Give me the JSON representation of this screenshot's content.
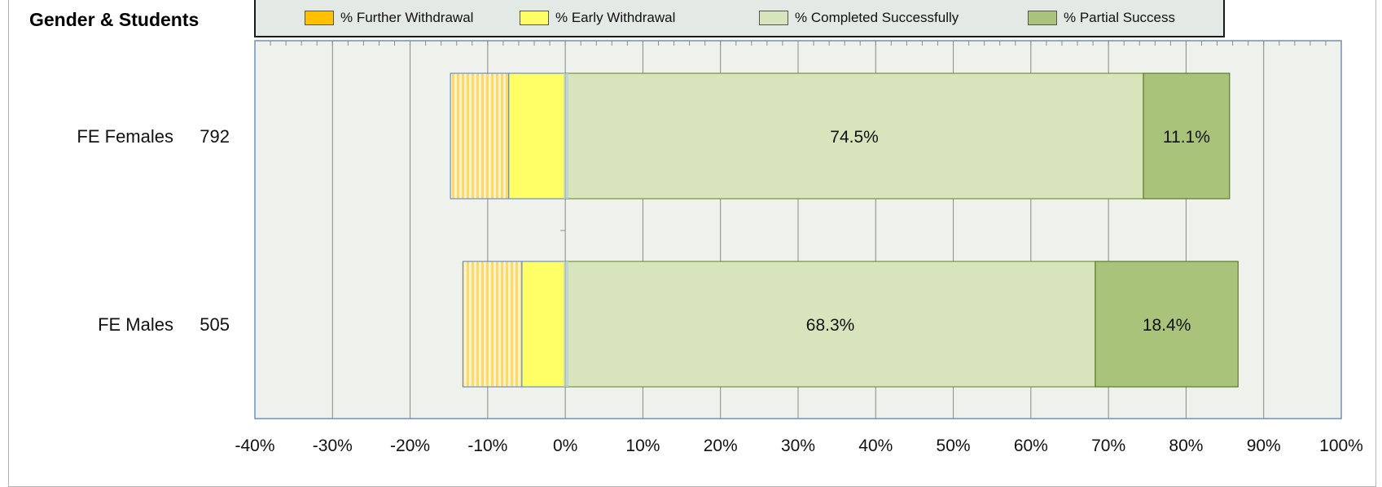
{
  "title": "Gender & Students",
  "legend": [
    {
      "key": "further",
      "label": "% Further Withdrawal",
      "color": "#ffc000"
    },
    {
      "key": "early",
      "label": "% Early Withdrawal",
      "color": "#ffff66"
    },
    {
      "key": "completed",
      "label": "% Completed Successfully",
      "color": "#d8e4bc"
    },
    {
      "key": "partial",
      "label": "% Partial Success",
      "color": "#a9c47a"
    }
  ],
  "chart_data": {
    "type": "bar",
    "orientation": "horizontal",
    "stacked": true,
    "title": "Gender & Students",
    "xlim": [
      -40,
      100
    ],
    "x_ticks": [
      -40,
      -30,
      -20,
      -10,
      0,
      10,
      20,
      30,
      40,
      50,
      60,
      70,
      80,
      90,
      100
    ],
    "tick_suffix": "%",
    "grid": true,
    "legend_position": "top",
    "categories": [
      {
        "name": "FE Females",
        "count": "792"
      },
      {
        "name": "FE Males",
        "count": "505"
      }
    ],
    "series": [
      {
        "name": "% Further Withdrawal",
        "key": "further",
        "values": [
          -7.5,
          -7.6
        ],
        "direction": "negative",
        "show_label": false
      },
      {
        "name": "% Early Withdrawal",
        "key": "early",
        "values": [
          -7.3,
          -5.6
        ],
        "direction": "negative",
        "show_label": false
      },
      {
        "name": "% Completed Successfully",
        "key": "completed",
        "values": [
          74.5,
          68.3
        ],
        "direction": "positive",
        "labels": [
          "74.5%",
          "68.3%"
        ],
        "show_label": true
      },
      {
        "name": "% Partial Success",
        "key": "partial",
        "values": [
          11.1,
          18.4
        ],
        "direction": "positive",
        "labels": [
          "11.1%",
          "18.4%"
        ],
        "show_label": true
      }
    ]
  }
}
